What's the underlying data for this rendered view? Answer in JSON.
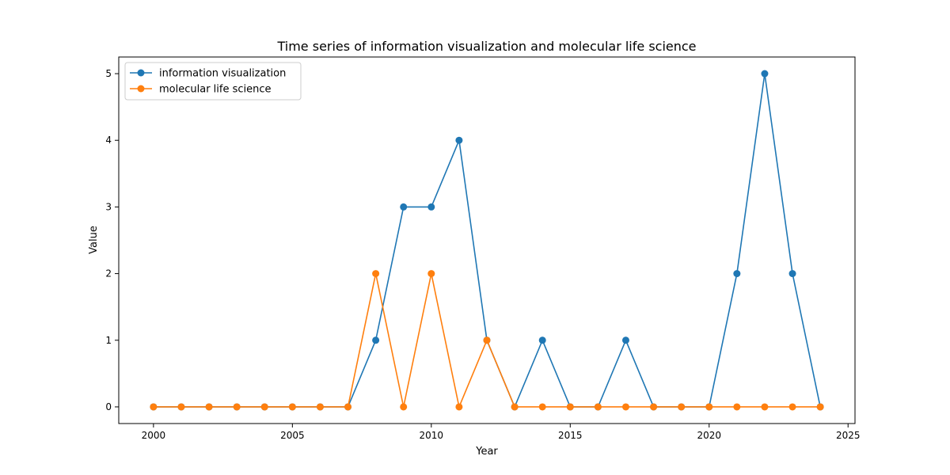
{
  "chart_data": {
    "type": "line",
    "title": "Time series of information visualization and molecular life science",
    "xlabel": "Year",
    "ylabel": "Value",
    "xlim": [
      1998.75,
      2025.25
    ],
    "ylim": [
      -0.25,
      5.25
    ],
    "xticks": [
      2000,
      2005,
      2010,
      2015,
      2020,
      2025
    ],
    "yticks": [
      0,
      1,
      2,
      3,
      4,
      5
    ],
    "grid": false,
    "legend_position": "upper-left",
    "x": [
      2000,
      2001,
      2002,
      2003,
      2004,
      2005,
      2006,
      2007,
      2008,
      2009,
      2010,
      2011,
      2012,
      2013,
      2014,
      2015,
      2016,
      2017,
      2018,
      2019,
      2020,
      2021,
      2022,
      2023,
      2024
    ],
    "series": [
      {
        "name": "information visualization",
        "color": "#1f77b4",
        "values": [
          0,
          0,
          0,
          0,
          0,
          0,
          0,
          0,
          1,
          3,
          3,
          4,
          1,
          0,
          1,
          0,
          0,
          1,
          0,
          0,
          0,
          2,
          5,
          2,
          0
        ]
      },
      {
        "name": "molecular life science",
        "color": "#ff7f0e",
        "values": [
          0,
          0,
          0,
          0,
          0,
          0,
          0,
          0,
          2,
          0,
          2,
          0,
          1,
          0,
          0,
          0,
          0,
          0,
          0,
          0,
          0,
          0,
          0,
          0,
          0
        ]
      }
    ]
  }
}
